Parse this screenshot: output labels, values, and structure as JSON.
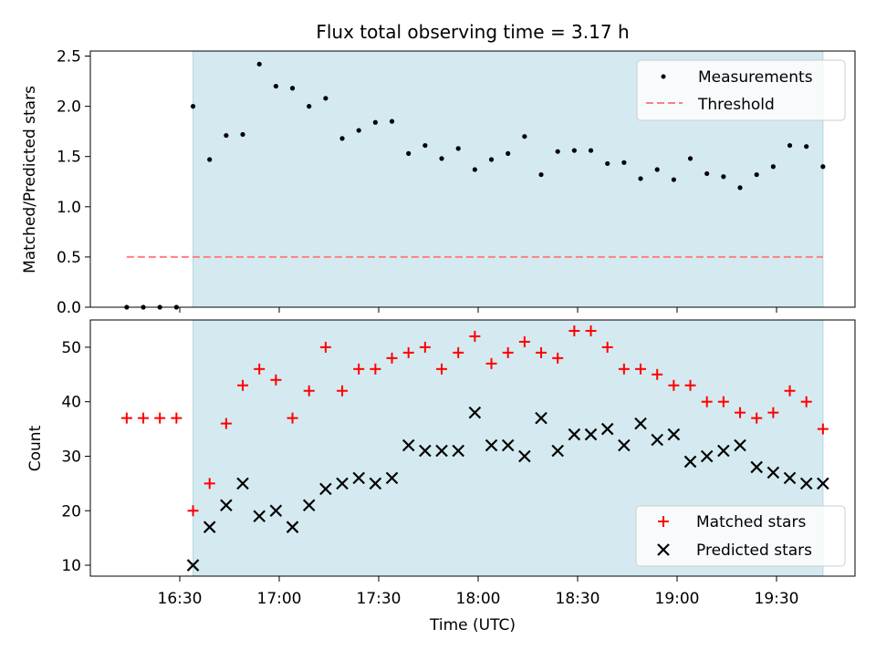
{
  "chart_data": [
    {
      "type": "scatter",
      "panel": "top",
      "title": "Flux total observing time = 3.17 h",
      "ylabel": "Matched/Predicted stars",
      "ylim": [
        0,
        2.55
      ],
      "yticks": [
        "0.0",
        "0.5",
        "1.0",
        "1.5",
        "2.0",
        "2.5"
      ],
      "ytick_values": [
        0,
        0.5,
        1.0,
        1.5,
        2.0,
        2.5
      ],
      "threshold": 0.5,
      "shaded_span": [
        "16:34",
        "19:44"
      ],
      "legend_position": "upper right",
      "legend": {
        "measurements": "Measurements",
        "threshold": "Threshold"
      },
      "series": [
        {
          "name": "Measurements",
          "x": [
            "16:14",
            "16:19",
            "16:24",
            "16:29",
            "16:34",
            "16:39",
            "16:44",
            "16:49",
            "16:54",
            "16:59",
            "17:04",
            "17:09",
            "17:14",
            "17:19",
            "17:24",
            "17:29",
            "17:34",
            "17:39",
            "17:44",
            "17:49",
            "17:54",
            "17:59",
            "18:04",
            "18:09",
            "18:14",
            "18:19",
            "18:24",
            "18:29",
            "18:34",
            "18:39",
            "18:44",
            "18:49",
            "18:54",
            "18:59",
            "19:04",
            "19:09",
            "19:14",
            "19:19",
            "19:24",
            "19:29",
            "19:34",
            "19:39",
            "19:44"
          ],
          "y": [
            0.0,
            0.0,
            0.0,
            0.0,
            2.0,
            1.47,
            1.71,
            1.72,
            2.42,
            2.2,
            2.18,
            2.0,
            2.08,
            1.68,
            1.76,
            1.84,
            1.85,
            1.53,
            1.61,
            1.48,
            1.58,
            1.37,
            1.47,
            1.53,
            1.7,
            1.32,
            1.55,
            1.56,
            1.56,
            1.43,
            1.44,
            1.28,
            1.37,
            1.27,
            1.48,
            1.33,
            1.3,
            1.19,
            1.32,
            1.4,
            1.61,
            1.6,
            1.4
          ]
        }
      ]
    },
    {
      "type": "scatter",
      "panel": "bottom",
      "xlabel": "Time (UTC)",
      "ylabel": "Count",
      "ylim": [
        8,
        55
      ],
      "yticks": [
        "10",
        "20",
        "30",
        "40",
        "50"
      ],
      "ytick_values": [
        10,
        20,
        30,
        40,
        50
      ],
      "xticks": [
        "16:30",
        "17:00",
        "17:30",
        "18:00",
        "18:30",
        "19:00",
        "19:30"
      ],
      "shaded_span": [
        "16:34",
        "19:44"
      ],
      "legend_position": "lower right",
      "legend": {
        "matched": "Matched stars",
        "predicted": "Predicted stars"
      },
      "series": [
        {
          "name": "Matched stars",
          "x": [
            "16:14",
            "16:19",
            "16:24",
            "16:29",
            "16:34",
            "16:39",
            "16:44",
            "16:49",
            "16:54",
            "16:59",
            "17:04",
            "17:09",
            "17:14",
            "17:19",
            "17:24",
            "17:29",
            "17:34",
            "17:39",
            "17:44",
            "17:49",
            "17:54",
            "17:59",
            "18:04",
            "18:09",
            "18:14",
            "18:19",
            "18:24",
            "18:29",
            "18:34",
            "18:39",
            "18:44",
            "18:49",
            "18:54",
            "18:59",
            "19:04",
            "19:09",
            "19:14",
            "19:19",
            "19:24",
            "19:29",
            "19:34",
            "19:39",
            "19:44"
          ],
          "y": [
            37,
            37,
            37,
            37,
            20,
            25,
            36,
            43,
            46,
            44,
            37,
            42,
            50,
            42,
            46,
            46,
            48,
            49,
            50,
            46,
            49,
            52,
            47,
            49,
            51,
            49,
            48,
            53,
            53,
            50,
            46,
            46,
            45,
            43,
            43,
            40,
            40,
            38,
            37,
            38,
            42,
            40,
            35
          ]
        },
        {
          "name": "Predicted stars",
          "x": [
            "16:34",
            "16:39",
            "16:44",
            "16:49",
            "16:54",
            "16:59",
            "17:04",
            "17:09",
            "17:14",
            "17:19",
            "17:24",
            "17:29",
            "17:34",
            "17:39",
            "17:44",
            "17:49",
            "17:54",
            "17:59",
            "18:04",
            "18:09",
            "18:14",
            "18:19",
            "18:24",
            "18:29",
            "18:34",
            "18:39",
            "18:44",
            "18:49",
            "18:54",
            "18:59",
            "19:04",
            "19:09",
            "19:14",
            "19:19",
            "19:24",
            "19:29",
            "19:34",
            "19:39",
            "19:44"
          ],
          "y": [
            10,
            17,
            21,
            25,
            19,
            20,
            17,
            21,
            24,
            25,
            26,
            25,
            26,
            32,
            31,
            31,
            31,
            38,
            32,
            32,
            30,
            37,
            31,
            34,
            34,
            35,
            32,
            36,
            33,
            34,
            29,
            30,
            31,
            32,
            28,
            27,
            26,
            25,
            25
          ]
        }
      ]
    }
  ],
  "colors": {
    "shade": "#d4eaf0",
    "shade_edge": "#add8e6",
    "measurement": "#000000",
    "threshold": "#ff7f7f",
    "matched": "#ff0000",
    "predicted": "#000000"
  }
}
